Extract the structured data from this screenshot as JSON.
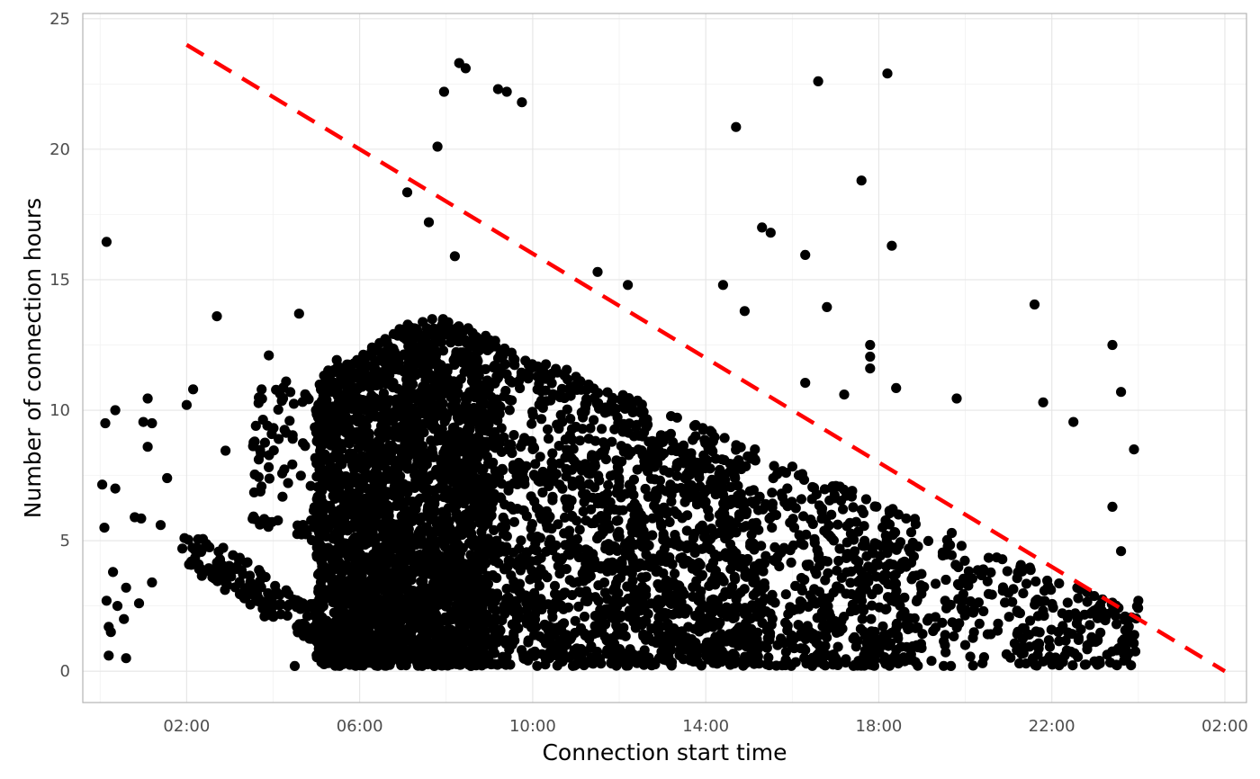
{
  "chart_data": {
    "type": "scatter",
    "xlabel": "Connection start time",
    "ylabel": "Number of connection hours",
    "x_unit": "hour of day (continuing past midnight)",
    "xlim": [
      -0.4,
      26.5
    ],
    "ylim": [
      -1.2,
      25.2
    ],
    "x_ticks": [
      {
        "value": 2,
        "label": "02:00"
      },
      {
        "value": 6,
        "label": "06:00"
      },
      {
        "value": 10,
        "label": "10:00"
      },
      {
        "value": 14,
        "label": "14:00"
      },
      {
        "value": 18,
        "label": "18:00"
      },
      {
        "value": 22,
        "label": "22:00"
      },
      {
        "value": 26,
        "label": "02:00"
      }
    ],
    "y_ticks": [
      {
        "value": 0,
        "label": "0"
      },
      {
        "value": 5,
        "label": "5"
      },
      {
        "value": 10,
        "label": "10"
      },
      {
        "value": 15,
        "label": "15"
      },
      {
        "value": 20,
        "label": "20"
      },
      {
        "value": 25,
        "label": "25"
      }
    ],
    "grid": true,
    "point_color": "#000000",
    "reference_line": {
      "style": "dashed",
      "color": "#ff0000",
      "x": [
        2,
        26
      ],
      "y": [
        24,
        0
      ]
    },
    "series": [
      {
        "points": [
          [
            0.05,
            7.15
          ],
          [
            0.1,
            5.5
          ],
          [
            0.12,
            9.5
          ],
          [
            0.15,
            2.7
          ],
          [
            0.2,
            1.7
          ],
          [
            0.25,
            1.5
          ],
          [
            0.3,
            3.8
          ],
          [
            0.35,
            10.0
          ],
          [
            0.35,
            7.0
          ],
          [
            0.2,
            0.6
          ],
          [
            0.15,
            16.45
          ],
          [
            0.4,
            2.5
          ],
          [
            0.6,
            0.5
          ],
          [
            0.6,
            3.2
          ],
          [
            0.55,
            2.0
          ],
          [
            0.8,
            5.9
          ],
          [
            0.95,
            5.85
          ],
          [
            1.0,
            9.55
          ],
          [
            1.1,
            10.45
          ],
          [
            1.1,
            8.6
          ],
          [
            1.2,
            9.5
          ],
          [
            0.9,
            2.6
          ],
          [
            1.2,
            3.4
          ],
          [
            1.4,
            5.6
          ],
          [
            1.55,
            7.4
          ],
          [
            1.9,
            4.7
          ],
          [
            1.95,
            5.1
          ],
          [
            2.0,
            10.2
          ],
          [
            2.15,
            10.8
          ],
          [
            2.7,
            13.6
          ],
          [
            2.9,
            8.45
          ],
          [
            3.6,
            9.4
          ],
          [
            3.8,
            2.1
          ],
          [
            3.9,
            12.1
          ],
          [
            4.3,
            11.1
          ],
          [
            4.5,
            0.2
          ],
          [
            4.6,
            13.7
          ],
          [
            7.1,
            18.35
          ],
          [
            7.8,
            20.1
          ],
          [
            7.95,
            22.2
          ],
          [
            8.3,
            23.3
          ],
          [
            8.45,
            23.1
          ],
          [
            9.2,
            22.3
          ],
          [
            9.4,
            22.2
          ],
          [
            9.75,
            21.8
          ],
          [
            14.7,
            20.85
          ],
          [
            16.6,
            22.6
          ],
          [
            18.2,
            22.9
          ],
          [
            17.6,
            18.8
          ],
          [
            15.3,
            17.0
          ],
          [
            15.5,
            16.8
          ],
          [
            16.3,
            15.95
          ],
          [
            18.3,
            16.3
          ],
          [
            14.4,
            14.8
          ],
          [
            14.9,
            13.8
          ],
          [
            16.8,
            13.95
          ],
          [
            17.8,
            12.5
          ],
          [
            17.8,
            12.05
          ],
          [
            17.8,
            11.6
          ],
          [
            18.4,
            10.85
          ],
          [
            17.2,
            10.6
          ],
          [
            16.3,
            11.05
          ],
          [
            19.8,
            10.45
          ],
          [
            21.6,
            14.05
          ],
          [
            21.8,
            10.3
          ],
          [
            23.4,
            12.5
          ],
          [
            23.6,
            10.7
          ],
          [
            23.4,
            6.3
          ],
          [
            22.5,
            9.55
          ],
          [
            23.9,
            8.5
          ],
          [
            23.6,
            4.6
          ],
          [
            23.5,
            0.8
          ],
          [
            23.1,
            0.4
          ],
          [
            24.0,
            2.7
          ],
          [
            12.2,
            14.8
          ],
          [
            11.5,
            15.3
          ],
          [
            10.3,
            11.2
          ],
          [
            8.2,
            15.9
          ],
          [
            7.6,
            17.2
          ]
        ]
      }
    ]
  }
}
